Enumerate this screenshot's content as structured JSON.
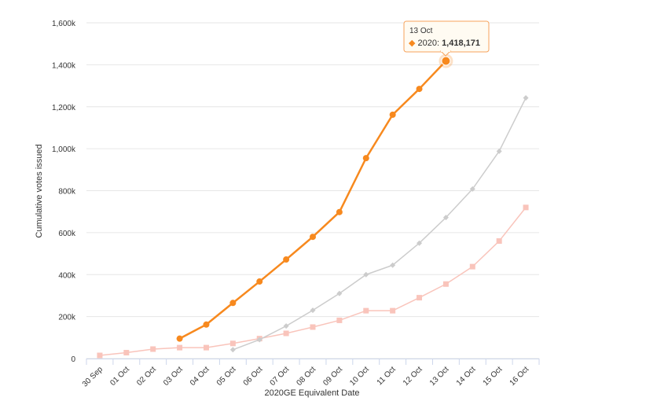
{
  "chart_data": {
    "type": "line",
    "title": "",
    "xlabel": "2020GE Equivalent Date",
    "ylabel": "Cumulative votes issued",
    "categories": [
      "30 Sep",
      "01 Oct",
      "02 Oct",
      "03 Oct",
      "04 Oct",
      "05 Oct",
      "06 Oct",
      "07 Oct",
      "08 Oct",
      "09 Oct",
      "10 Oct",
      "11 Oct",
      "12 Oct",
      "13 Oct",
      "14 Oct",
      "15 Oct",
      "16 Oct"
    ],
    "ylim": [
      0,
      1600000
    ],
    "yticks": [
      0,
      200000,
      400000,
      600000,
      800000,
      1000000,
      1200000,
      1400000,
      1600000
    ],
    "ytick_labels": [
      "0",
      "200k",
      "400k",
      "600k",
      "800k",
      "1,000k",
      "1,200k",
      "1,400k",
      "1,600k"
    ],
    "grid": true,
    "legend": "none",
    "series": [
      {
        "color": "#f9c4bb",
        "marker": "square",
        "values": [
          15000,
          28000,
          45000,
          52000,
          52000,
          72000,
          95000,
          120000,
          150000,
          182000,
          228000,
          228000,
          290000,
          355000,
          438000,
          560000,
          720000
        ]
      },
      {
        "color": "#cccccc",
        "marker": "diamond",
        "values": [
          null,
          null,
          null,
          null,
          null,
          42000,
          90000,
          155000,
          230000,
          310000,
          400000,
          445000,
          550000,
          672000,
          808000,
          988000,
          1242000
        ]
      },
      {
        "name": "2020",
        "color": "#f7891e",
        "marker": "circle",
        "values": [
          null,
          null,
          null,
          95000,
          162000,
          265000,
          367000,
          472000,
          580000,
          698000,
          955000,
          1162000,
          1285000,
          1418171,
          null,
          null,
          null
        ]
      }
    ],
    "tooltip": {
      "date": "13 Oct",
      "series_label": "2020: ",
      "value_text": "1,418,171",
      "bullet": "◆"
    }
  }
}
